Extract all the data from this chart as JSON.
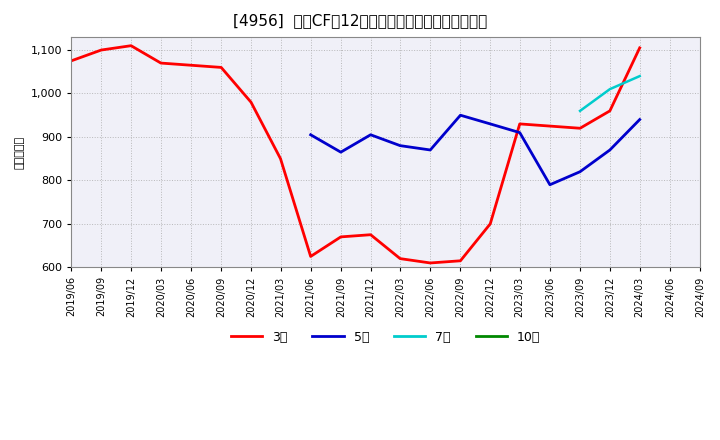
{
  "title": "[4956]  営業CFの12か月移動合計の標準偏差の推移",
  "ylabel": "（百万円）",
  "ylim": [
    600,
    1130
  ],
  "yticks": [
    600,
    700,
    800,
    900,
    1000,
    1100
  ],
  "background_color": "#ffffff",
  "grid_color": "#aaaaaa",
  "series": {
    "3year": {
      "color": "#ff0000",
      "label": "3年",
      "dates": [
        "2019/06",
        "2019/09",
        "2019/12",
        "2020/03",
        "2020/06",
        "2020/09",
        "2020/12",
        "2021/03",
        "2021/06",
        "2021/09",
        "2021/12",
        "2022/03",
        "2022/06",
        "2022/09",
        "2022/12",
        "2023/03",
        "2023/06",
        "2023/09",
        "2023/12",
        "2024/03"
      ],
      "values": [
        1075,
        1100,
        1110,
        1070,
        1065,
        1060,
        980,
        850,
        625,
        670,
        675,
        620,
        610,
        615,
        700,
        930,
        925,
        920,
        960,
        1105
      ]
    },
    "5year": {
      "color": "#0000cc",
      "label": "5年",
      "dates": [
        "2021/06",
        "2021/09",
        "2021/12",
        "2022/03",
        "2022/06",
        "2022/09",
        "2022/12",
        "2023/03",
        "2023/06",
        "2023/09",
        "2023/12",
        "2024/03"
      ],
      "values": [
        905,
        865,
        905,
        880,
        870,
        950,
        930,
        910,
        790,
        820,
        870,
        940
      ]
    },
    "7year": {
      "color": "#00cccc",
      "label": "7年",
      "dates": [
        "2023/09",
        "2023/12",
        "2024/03"
      ],
      "values": [
        960,
        1010,
        1040
      ]
    },
    "10year": {
      "color": "#008800",
      "label": "10年",
      "dates": [],
      "values": []
    }
  },
  "xticklabels": [
    "2019/06",
    "2019/09",
    "2019/12",
    "2020/03",
    "2020/06",
    "2020/09",
    "2020/12",
    "2021/03",
    "2021/06",
    "2021/09",
    "2021/12",
    "2022/03",
    "2022/06",
    "2022/09",
    "2022/12",
    "2023/03",
    "2023/06",
    "2023/09",
    "2023/12",
    "2024/03",
    "2024/06",
    "2024/09"
  ]
}
